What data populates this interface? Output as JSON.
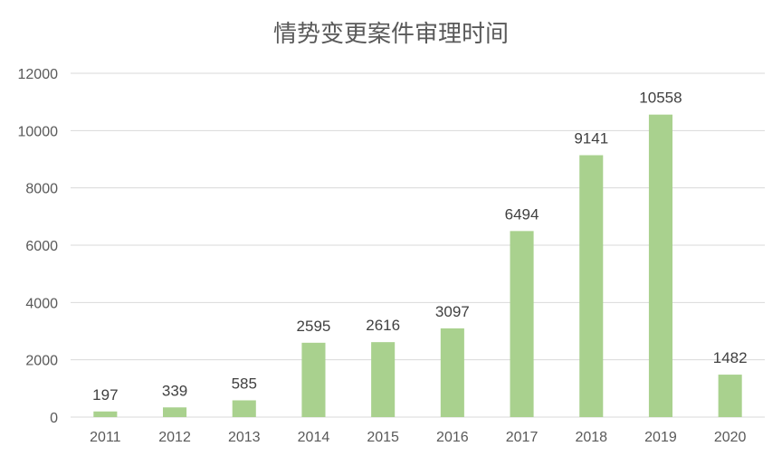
{
  "chart_data": {
    "type": "bar",
    "title": "情势变更案件审理时间",
    "xlabel": "",
    "ylabel": "",
    "categories": [
      "2011",
      "2012",
      "2013",
      "2014",
      "2015",
      "2016",
      "2017",
      "2018",
      "2019",
      "2020"
    ],
    "values": [
      197,
      339,
      585,
      2595,
      2616,
      3097,
      6494,
      9141,
      10558,
      1482
    ],
    "ylim": [
      0,
      12000
    ],
    "yticks": [
      "0",
      "2000",
      "4000",
      "6000",
      "8000",
      "10000",
      "12000"
    ],
    "grid": true,
    "legend": "none",
    "bar_color": "#a9d18e"
  }
}
